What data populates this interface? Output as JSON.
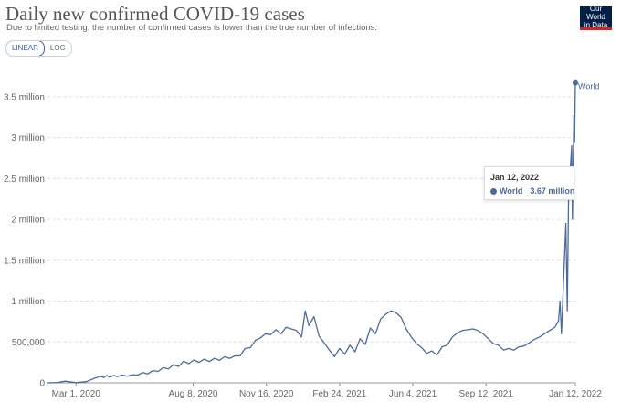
{
  "header": {
    "title": "Daily new confirmed COVID-19 cases",
    "subtitle": "Due to limited testing, the number of confirmed cases is lower than the true number of infections."
  },
  "logo": {
    "line1": "Our World",
    "line2": "in Data"
  },
  "scale_toggle": {
    "linear_label": "LINEAR",
    "log_label": "LOG",
    "selected": "LINEAR"
  },
  "tooltip": {
    "date": "Jan 12, 2022",
    "series": "World",
    "value": "3.67 million"
  },
  "colors": {
    "series": "#4c6a9c",
    "grid": "#dddddd",
    "axis_text": "#666666",
    "accent": "#3360a9"
  },
  "chart_data": {
    "type": "line",
    "title": "Daily new confirmed COVID-19 cases",
    "ylim": [
      0,
      3700000
    ],
    "grid": "horizontal dashed",
    "y_ticks": [
      {
        "value": 0,
        "label": "0"
      },
      {
        "value": 500000,
        "label": "500,000"
      },
      {
        "value": 1000000,
        "label": "1 million"
      },
      {
        "value": 1500000,
        "label": "1.5 million"
      },
      {
        "value": 2000000,
        "label": "2 million"
      },
      {
        "value": 2500000,
        "label": "2.5 million"
      },
      {
        "value": 3000000,
        "label": "3 million"
      },
      {
        "value": 3500000,
        "label": "3.5 million"
      }
    ],
    "x_ticks": [
      {
        "date": "2020-03-01",
        "label": "Mar 1, 2020"
      },
      {
        "date": "2020-08-08",
        "label": "Aug 8, 2020"
      },
      {
        "date": "2020-11-16",
        "label": "Nov 16, 2020"
      },
      {
        "date": "2021-02-24",
        "label": "Feb 24, 2021"
      },
      {
        "date": "2021-06-04",
        "label": "Jun 4, 2021"
      },
      {
        "date": "2021-09-12",
        "label": "Sep 12, 2021"
      },
      {
        "date": "2022-01-12",
        "label": "Jan 12, 2022"
      }
    ],
    "x_range": [
      "2020-01-22",
      "2022-01-12"
    ],
    "series": [
      {
        "name": "World",
        "end_label": "World",
        "points": [
          [
            "2020-01-22",
            0
          ],
          [
            "2020-02-05",
            3000
          ],
          [
            "2020-02-15",
            20000
          ],
          [
            "2020-03-01",
            2000
          ],
          [
            "2020-03-15",
            15000
          ],
          [
            "2020-03-26",
            55000
          ],
          [
            "2020-04-03",
            80000
          ],
          [
            "2020-04-08",
            65000
          ],
          [
            "2020-04-12",
            90000
          ],
          [
            "2020-04-16",
            70000
          ],
          [
            "2020-04-22",
            90000
          ],
          [
            "2020-04-26",
            75000
          ],
          [
            "2020-05-03",
            95000
          ],
          [
            "2020-05-10",
            80000
          ],
          [
            "2020-05-17",
            100000
          ],
          [
            "2020-05-24",
            95000
          ],
          [
            "2020-05-31",
            125000
          ],
          [
            "2020-06-07",
            110000
          ],
          [
            "2020-06-14",
            150000
          ],
          [
            "2020-06-21",
            140000
          ],
          [
            "2020-06-28",
            185000
          ],
          [
            "2020-07-05",
            170000
          ],
          [
            "2020-07-12",
            220000
          ],
          [
            "2020-07-19",
            200000
          ],
          [
            "2020-07-26",
            265000
          ],
          [
            "2020-08-02",
            235000
          ],
          [
            "2020-08-09",
            280000
          ],
          [
            "2020-08-16",
            250000
          ],
          [
            "2020-08-23",
            290000
          ],
          [
            "2020-08-30",
            260000
          ],
          [
            "2020-09-06",
            300000
          ],
          [
            "2020-09-13",
            275000
          ],
          [
            "2020-09-20",
            320000
          ],
          [
            "2020-09-27",
            300000
          ],
          [
            "2020-10-04",
            330000
          ],
          [
            "2020-10-11",
            330000
          ],
          [
            "2020-10-18",
            420000
          ],
          [
            "2020-10-25",
            430000
          ],
          [
            "2020-11-01",
            520000
          ],
          [
            "2020-11-08",
            550000
          ],
          [
            "2020-11-15",
            600000
          ],
          [
            "2020-11-22",
            590000
          ],
          [
            "2020-11-29",
            650000
          ],
          [
            "2020-12-06",
            600000
          ],
          [
            "2020-12-13",
            680000
          ],
          [
            "2020-12-20",
            660000
          ],
          [
            "2020-12-27",
            640000
          ],
          [
            "2021-01-03",
            560000
          ],
          [
            "2021-01-08",
            880000
          ],
          [
            "2021-01-13",
            700000
          ],
          [
            "2021-01-20",
            810000
          ],
          [
            "2021-01-27",
            570000
          ],
          [
            "2021-02-03",
            490000
          ],
          [
            "2021-02-10",
            400000
          ],
          [
            "2021-02-17",
            320000
          ],
          [
            "2021-02-24",
            420000
          ],
          [
            "2021-03-03",
            350000
          ],
          [
            "2021-03-10",
            460000
          ],
          [
            "2021-03-17",
            380000
          ],
          [
            "2021-03-24",
            540000
          ],
          [
            "2021-03-31",
            470000
          ],
          [
            "2021-04-07",
            670000
          ],
          [
            "2021-04-14",
            600000
          ],
          [
            "2021-04-21",
            780000
          ],
          [
            "2021-04-28",
            840000
          ],
          [
            "2021-05-05",
            880000
          ],
          [
            "2021-05-12",
            860000
          ],
          [
            "2021-05-19",
            800000
          ],
          [
            "2021-05-26",
            660000
          ],
          [
            "2021-06-02",
            560000
          ],
          [
            "2021-06-09",
            480000
          ],
          [
            "2021-06-16",
            430000
          ],
          [
            "2021-06-23",
            360000
          ],
          [
            "2021-06-30",
            390000
          ],
          [
            "2021-07-07",
            340000
          ],
          [
            "2021-07-14",
            440000
          ],
          [
            "2021-07-21",
            460000
          ],
          [
            "2021-07-28",
            560000
          ],
          [
            "2021-08-04",
            610000
          ],
          [
            "2021-08-11",
            640000
          ],
          [
            "2021-08-18",
            650000
          ],
          [
            "2021-08-25",
            660000
          ],
          [
            "2021-09-01",
            640000
          ],
          [
            "2021-09-08",
            600000
          ],
          [
            "2021-09-15",
            540000
          ],
          [
            "2021-09-22",
            480000
          ],
          [
            "2021-09-29",
            460000
          ],
          [
            "2021-10-06",
            400000
          ],
          [
            "2021-10-13",
            420000
          ],
          [
            "2021-10-20",
            400000
          ],
          [
            "2021-10-27",
            440000
          ],
          [
            "2021-11-03",
            450000
          ],
          [
            "2021-11-10",
            490000
          ],
          [
            "2021-11-17",
            530000
          ],
          [
            "2021-11-24",
            560000
          ],
          [
            "2021-12-01",
            600000
          ],
          [
            "2021-12-08",
            640000
          ],
          [
            "2021-12-15",
            680000
          ],
          [
            "2021-12-20",
            760000
          ],
          [
            "2021-12-22",
            1000000
          ],
          [
            "2021-12-24",
            600000
          ],
          [
            "2021-12-28",
            1500000
          ],
          [
            "2021-12-30",
            1950000
          ],
          [
            "2022-01-01",
            880000
          ],
          [
            "2022-01-03",
            2500000
          ],
          [
            "2022-01-05",
            2600000
          ],
          [
            "2022-01-07",
            2900000
          ],
          [
            "2022-01-08",
            2000000
          ],
          [
            "2022-01-10",
            3270000
          ],
          [
            "2022-01-11",
            2950000
          ],
          [
            "2022-01-12",
            3670000
          ]
        ]
      }
    ]
  }
}
